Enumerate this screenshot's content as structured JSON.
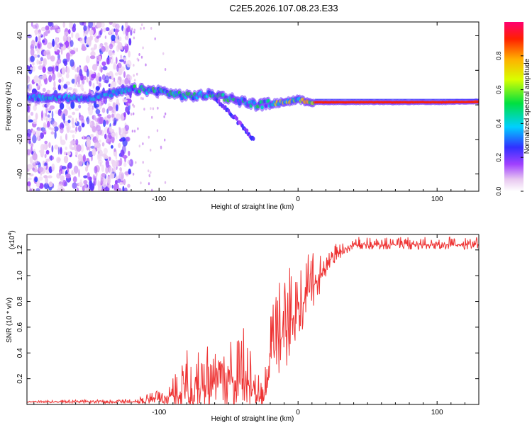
{
  "title": "C2E5.2026.107.08.23.E33",
  "chart_data": [
    {
      "type": "heatmap",
      "title": "C2E5.2026.107.08.23.E33",
      "xlabel": "Height of straight line (km)",
      "ylabel": "Frequency (Hz)",
      "xlim": [
        -195,
        130
      ],
      "ylim": [
        -50,
        48
      ],
      "xticks": [
        -100,
        0,
        100
      ],
      "yticks": [
        -40,
        -20,
        0,
        20,
        40
      ],
      "colorbar": {
        "label": "Normalized spectral amplitude",
        "range": [
          0,
          1
        ],
        "ticks": [
          0.0,
          0.2,
          0.4,
          0.6,
          0.8
        ]
      },
      "description_values": {
        "noise_region_x": [
          -195,
          -120
        ],
        "signal_trace": [
          {
            "x": -195,
            "y": 4
          },
          {
            "x": -150,
            "y": 4
          },
          {
            "x": -118,
            "y": 9
          },
          {
            "x": -100,
            "y": 8
          },
          {
            "x": -80,
            "y": 5
          },
          {
            "x": -60,
            "y": 6
          },
          {
            "x": -45,
            "y": 3
          },
          {
            "x": -30,
            "y": 0
          },
          {
            "x": -15,
            "y": 1
          },
          {
            "x": 0,
            "y": 3
          },
          {
            "x": 10,
            "y": 1.5
          },
          {
            "x": 50,
            "y": 1.5
          },
          {
            "x": 100,
            "y": 1.5
          },
          {
            "x": 130,
            "y": 2
          }
        ],
        "secondary_branch": [
          {
            "x": -60,
            "y": 4
          },
          {
            "x": -45,
            "y": -8
          },
          {
            "x": -32,
            "y": -20
          }
        ]
      }
    },
    {
      "type": "line",
      "xlabel": "Height of straight line (km)",
      "ylabel": "SNR (10 * v/v)",
      "yscale_label": "(x10",
      "yscale_exp": "4",
      "yscale_close": ")",
      "xlim": [
        -195,
        130
      ],
      "ylim": [
        0,
        1.32
      ],
      "xticks": [
        -100,
        0,
        100
      ],
      "yticks": [
        0.2,
        0.4,
        0.6,
        0.8,
        1.0,
        1.2
      ],
      "ytick_labels": [
        "0.2",
        "0.4",
        "0.6",
        "0.8",
        "1.0",
        "1.2"
      ],
      "color": "#ee3333",
      "envelope": [
        {
          "x": -195,
          "base": 0.02,
          "amp": 0.01
        },
        {
          "x": -120,
          "base": 0.02,
          "amp": 0.02
        },
        {
          "x": -95,
          "base": 0.05,
          "amp": 0.08
        },
        {
          "x": -80,
          "base": 0.1,
          "amp": 0.35
        },
        {
          "x": -60,
          "base": 0.15,
          "amp": 0.3
        },
        {
          "x": -40,
          "base": 0.2,
          "amp": 0.45
        },
        {
          "x": -25,
          "base": 0.02,
          "amp": 0.1
        },
        {
          "x": -20,
          "base": 0.35,
          "amp": 0.4
        },
        {
          "x": -10,
          "base": 0.55,
          "amp": 0.5
        },
        {
          "x": 0,
          "base": 0.75,
          "amp": 0.45
        },
        {
          "x": 10,
          "base": 0.9,
          "amp": 0.3
        },
        {
          "x": 25,
          "base": 1.15,
          "amp": 0.1
        },
        {
          "x": 40,
          "base": 1.24,
          "amp": 0.06
        },
        {
          "x": 130,
          "base": 1.24,
          "amp": 0.06
        }
      ]
    }
  ]
}
